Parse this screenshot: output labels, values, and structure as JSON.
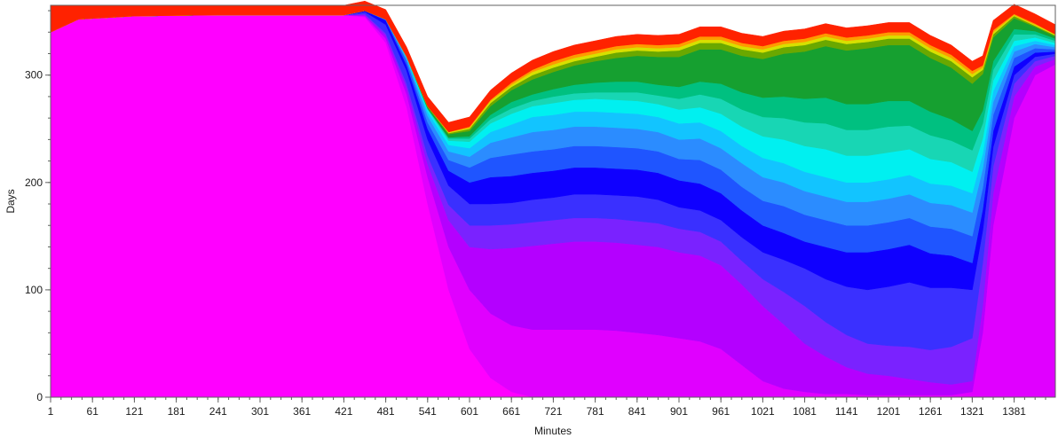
{
  "chart_data": {
    "type": "area",
    "title": "",
    "xlabel": "Minutes",
    "ylabel": "Days",
    "xlim": [
      1,
      1440
    ],
    "ylim": [
      0,
      365
    ],
    "x_ticks": [
      1,
      61,
      121,
      181,
      241,
      301,
      361,
      421,
      481,
      541,
      601,
      661,
      721,
      781,
      841,
      901,
      961,
      1021,
      1081,
      1141,
      1201,
      1261,
      1321,
      1381
    ],
    "x_tick_labels": [
      "1",
      "61",
      "121",
      "181",
      "241",
      "301",
      "361",
      "421",
      "481",
      "541",
      "601",
      "661",
      "721",
      "781",
      "841",
      "901",
      "961",
      "1021",
      "1081",
      "1141",
      "1201",
      "1261",
      "1321",
      "1381"
    ],
    "y_ticks": [
      0,
      100,
      200,
      300
    ],
    "y_tick_labels": [
      "0",
      "100",
      "200",
      "300"
    ],
    "grid": false,
    "legend": "none",
    "x": [
      1,
      41,
      121,
      241,
      361,
      421,
      451,
      481,
      511,
      541,
      571,
      601,
      631,
      661,
      691,
      721,
      751,
      781,
      811,
      841,
      871,
      901,
      931,
      961,
      991,
      1021,
      1051,
      1081,
      1111,
      1141,
      1171,
      1201,
      1231,
      1261,
      1291,
      1321,
      1336,
      1351,
      1381,
      1411,
      1440
    ],
    "series": [
      {
        "color": "#ff00ff",
        "values": [
          340,
          352,
          355,
          356,
          356,
          356,
          354,
          330,
          270,
          180,
          100,
          45,
          18,
          5,
          0,
          0,
          0,
          0,
          0,
          0,
          0,
          0,
          0,
          0,
          0,
          0,
          0,
          0,
          0,
          0,
          0,
          0,
          0,
          0,
          0,
          0,
          0,
          0,
          0,
          0,
          0
        ]
      },
      {
        "color": "#e000ff",
        "values": [
          0,
          0,
          0,
          0,
          0,
          0,
          1,
          4,
          12,
          25,
          40,
          55,
          60,
          62,
          63,
          63,
          63,
          63,
          62,
          60,
          58,
          55,
          52,
          45,
          30,
          15,
          8,
          5,
          3,
          3,
          2,
          2,
          2,
          2,
          2,
          5,
          60,
          160,
          260,
          300,
          310
        ]
      },
      {
        "color": "#b400ff",
        "values": [
          0,
          0,
          0,
          0,
          0,
          0,
          1,
          3,
          6,
          12,
          25,
          40,
          60,
          72,
          78,
          80,
          82,
          82,
          82,
          82,
          82,
          80,
          80,
          78,
          75,
          70,
          60,
          45,
          35,
          25,
          20,
          18,
          15,
          12,
          10,
          10,
          25,
          30,
          20,
          8,
          5
        ]
      },
      {
        "color": "#7a22ff",
        "values": [
          0,
          0,
          0,
          0,
          0,
          0,
          1,
          2,
          4,
          8,
          14,
          20,
          22,
          22,
          22,
          22,
          22,
          22,
          22,
          22,
          22,
          22,
          22,
          22,
          22,
          25,
          30,
          35,
          32,
          30,
          28,
          28,
          30,
          30,
          35,
          40,
          40,
          25,
          12,
          5,
          3
        ]
      },
      {
        "color": "#3a30ff",
        "values": [
          0,
          0,
          0,
          0,
          0,
          0,
          2,
          8,
          12,
          15,
          18,
          20,
          20,
          20,
          21,
          21,
          22,
          22,
          22,
          23,
          22,
          20,
          20,
          20,
          22,
          25,
          30,
          35,
          40,
          45,
          50,
          55,
          60,
          58,
          55,
          45,
          30,
          18,
          8,
          4,
          2
        ]
      },
      {
        "color": "#0f00ff",
        "values": [
          0,
          0,
          0,
          0,
          0,
          0,
          1,
          4,
          5,
          10,
          14,
          20,
          25,
          25,
          25,
          25,
          25,
          25,
          25,
          25,
          25,
          25,
          25,
          25,
          25,
          25,
          25,
          25,
          30,
          32,
          35,
          35,
          35,
          32,
          30,
          25,
          20,
          15,
          8,
          4,
          2
        ]
      },
      {
        "color": "#1f55ff",
        "values": [
          0,
          0,
          0,
          0,
          0,
          0,
          0,
          1,
          4,
          6,
          10,
          14,
          18,
          20,
          20,
          20,
          20,
          20,
          20,
          20,
          20,
          20,
          22,
          22,
          22,
          23,
          25,
          25,
          25,
          25,
          25,
          25,
          25,
          25,
          25,
          25,
          20,
          15,
          8,
          4,
          2
        ]
      },
      {
        "color": "#2b8cff",
        "values": [
          0,
          0,
          0,
          0,
          0,
          0,
          0,
          0,
          2,
          6,
          8,
          10,
          14,
          16,
          18,
          18,
          18,
          18,
          18,
          18,
          18,
          18,
          20,
          20,
          22,
          22,
          22,
          22,
          22,
          22,
          22,
          22,
          22,
          22,
          22,
          22,
          18,
          12,
          6,
          4,
          2
        ]
      },
      {
        "color": "#12c4ff",
        "values": [
          0,
          0,
          0,
          0,
          0,
          0,
          0,
          0,
          1,
          4,
          6,
          8,
          10,
          12,
          14,
          14,
          14,
          14,
          14,
          14,
          14,
          15,
          15,
          16,
          16,
          18,
          18,
          18,
          18,
          18,
          18,
          18,
          18,
          18,
          18,
          18,
          14,
          10,
          5,
          3,
          2
        ]
      },
      {
        "color": "#00f0f0",
        "values": [
          0,
          0,
          0,
          0,
          0,
          0,
          0,
          0,
          1,
          2,
          4,
          6,
          8,
          10,
          10,
          11,
          11,
          12,
          12,
          12,
          12,
          13,
          14,
          16,
          18,
          20,
          22,
          24,
          26,
          25,
          25,
          25,
          24,
          23,
          22,
          20,
          14,
          10,
          5,
          3,
          2
        ]
      },
      {
        "color": "#18d6b4",
        "values": [
          0,
          0,
          0,
          0,
          0,
          0,
          0,
          0,
          0,
          1,
          2,
          3,
          4,
          5,
          5,
          6,
          6,
          6,
          7,
          8,
          8,
          10,
          12,
          14,
          16,
          18,
          20,
          22,
          24,
          24,
          24,
          24,
          22,
          22,
          20,
          20,
          14,
          10,
          6,
          3,
          2
        ]
      },
      {
        "color": "#00c080",
        "values": [
          0,
          0,
          0,
          0,
          0,
          0,
          0,
          0,
          0,
          0,
          1,
          2,
          4,
          6,
          6,
          7,
          8,
          9,
          10,
          10,
          10,
          11,
          12,
          14,
          16,
          18,
          20,
          22,
          24,
          24,
          24,
          24,
          23,
          22,
          20,
          18,
          12,
          8,
          5,
          3,
          2
        ]
      },
      {
        "color": "#16a030",
        "values": [
          0,
          0,
          0,
          0,
          0,
          0,
          0,
          0,
          0,
          1,
          3,
          5,
          8,
          11,
          14,
          16,
          18,
          20,
          22,
          24,
          26,
          28,
          30,
          32,
          34,
          36,
          40,
          44,
          48,
          50,
          52,
          52,
          52,
          50,
          48,
          44,
          34,
          22,
          10,
          4,
          2
        ]
      },
      {
        "color": "#6aa800",
        "values": [
          0,
          0,
          0,
          0,
          0,
          0,
          0,
          0,
          0,
          1,
          1,
          2,
          3,
          3,
          4,
          4,
          4,
          4,
          5,
          5,
          5,
          6,
          6,
          6,
          6,
          6,
          6,
          6,
          6,
          6,
          6,
          6,
          6,
          6,
          6,
          6,
          4,
          3,
          2,
          1,
          1
        ]
      },
      {
        "color": "#d8e000",
        "values": [
          0,
          0,
          0,
          0,
          0,
          0,
          0,
          0,
          0,
          0,
          1,
          1,
          2,
          2,
          3,
          3,
          3,
          3,
          3,
          3,
          3,
          3,
          3,
          3,
          3,
          3,
          3,
          3,
          3,
          3,
          3,
          3,
          3,
          3,
          3,
          3,
          2,
          2,
          1,
          1,
          1
        ]
      },
      {
        "color": "#ff9a00",
        "values": [
          0,
          0,
          0,
          0,
          0,
          0,
          0,
          0,
          0,
          0,
          0,
          1,
          1,
          2,
          2,
          3,
          3,
          3,
          3,
          3,
          3,
          3,
          3,
          3,
          3,
          3,
          3,
          3,
          3,
          3,
          3,
          3,
          3,
          3,
          3,
          3,
          2,
          2,
          1,
          1,
          0
        ]
      },
      {
        "color": "#ff2200",
        "values": [
          25,
          13,
          10,
          9,
          9,
          9,
          9,
          9,
          9,
          9,
          9,
          9,
          9,
          9,
          9,
          9,
          9,
          9,
          9,
          9,
          9,
          9,
          9,
          9,
          9,
          9,
          9,
          9,
          9,
          9,
          9,
          9,
          9,
          9,
          9,
          9,
          9,
          9,
          9,
          9,
          9
        ]
      }
    ]
  }
}
